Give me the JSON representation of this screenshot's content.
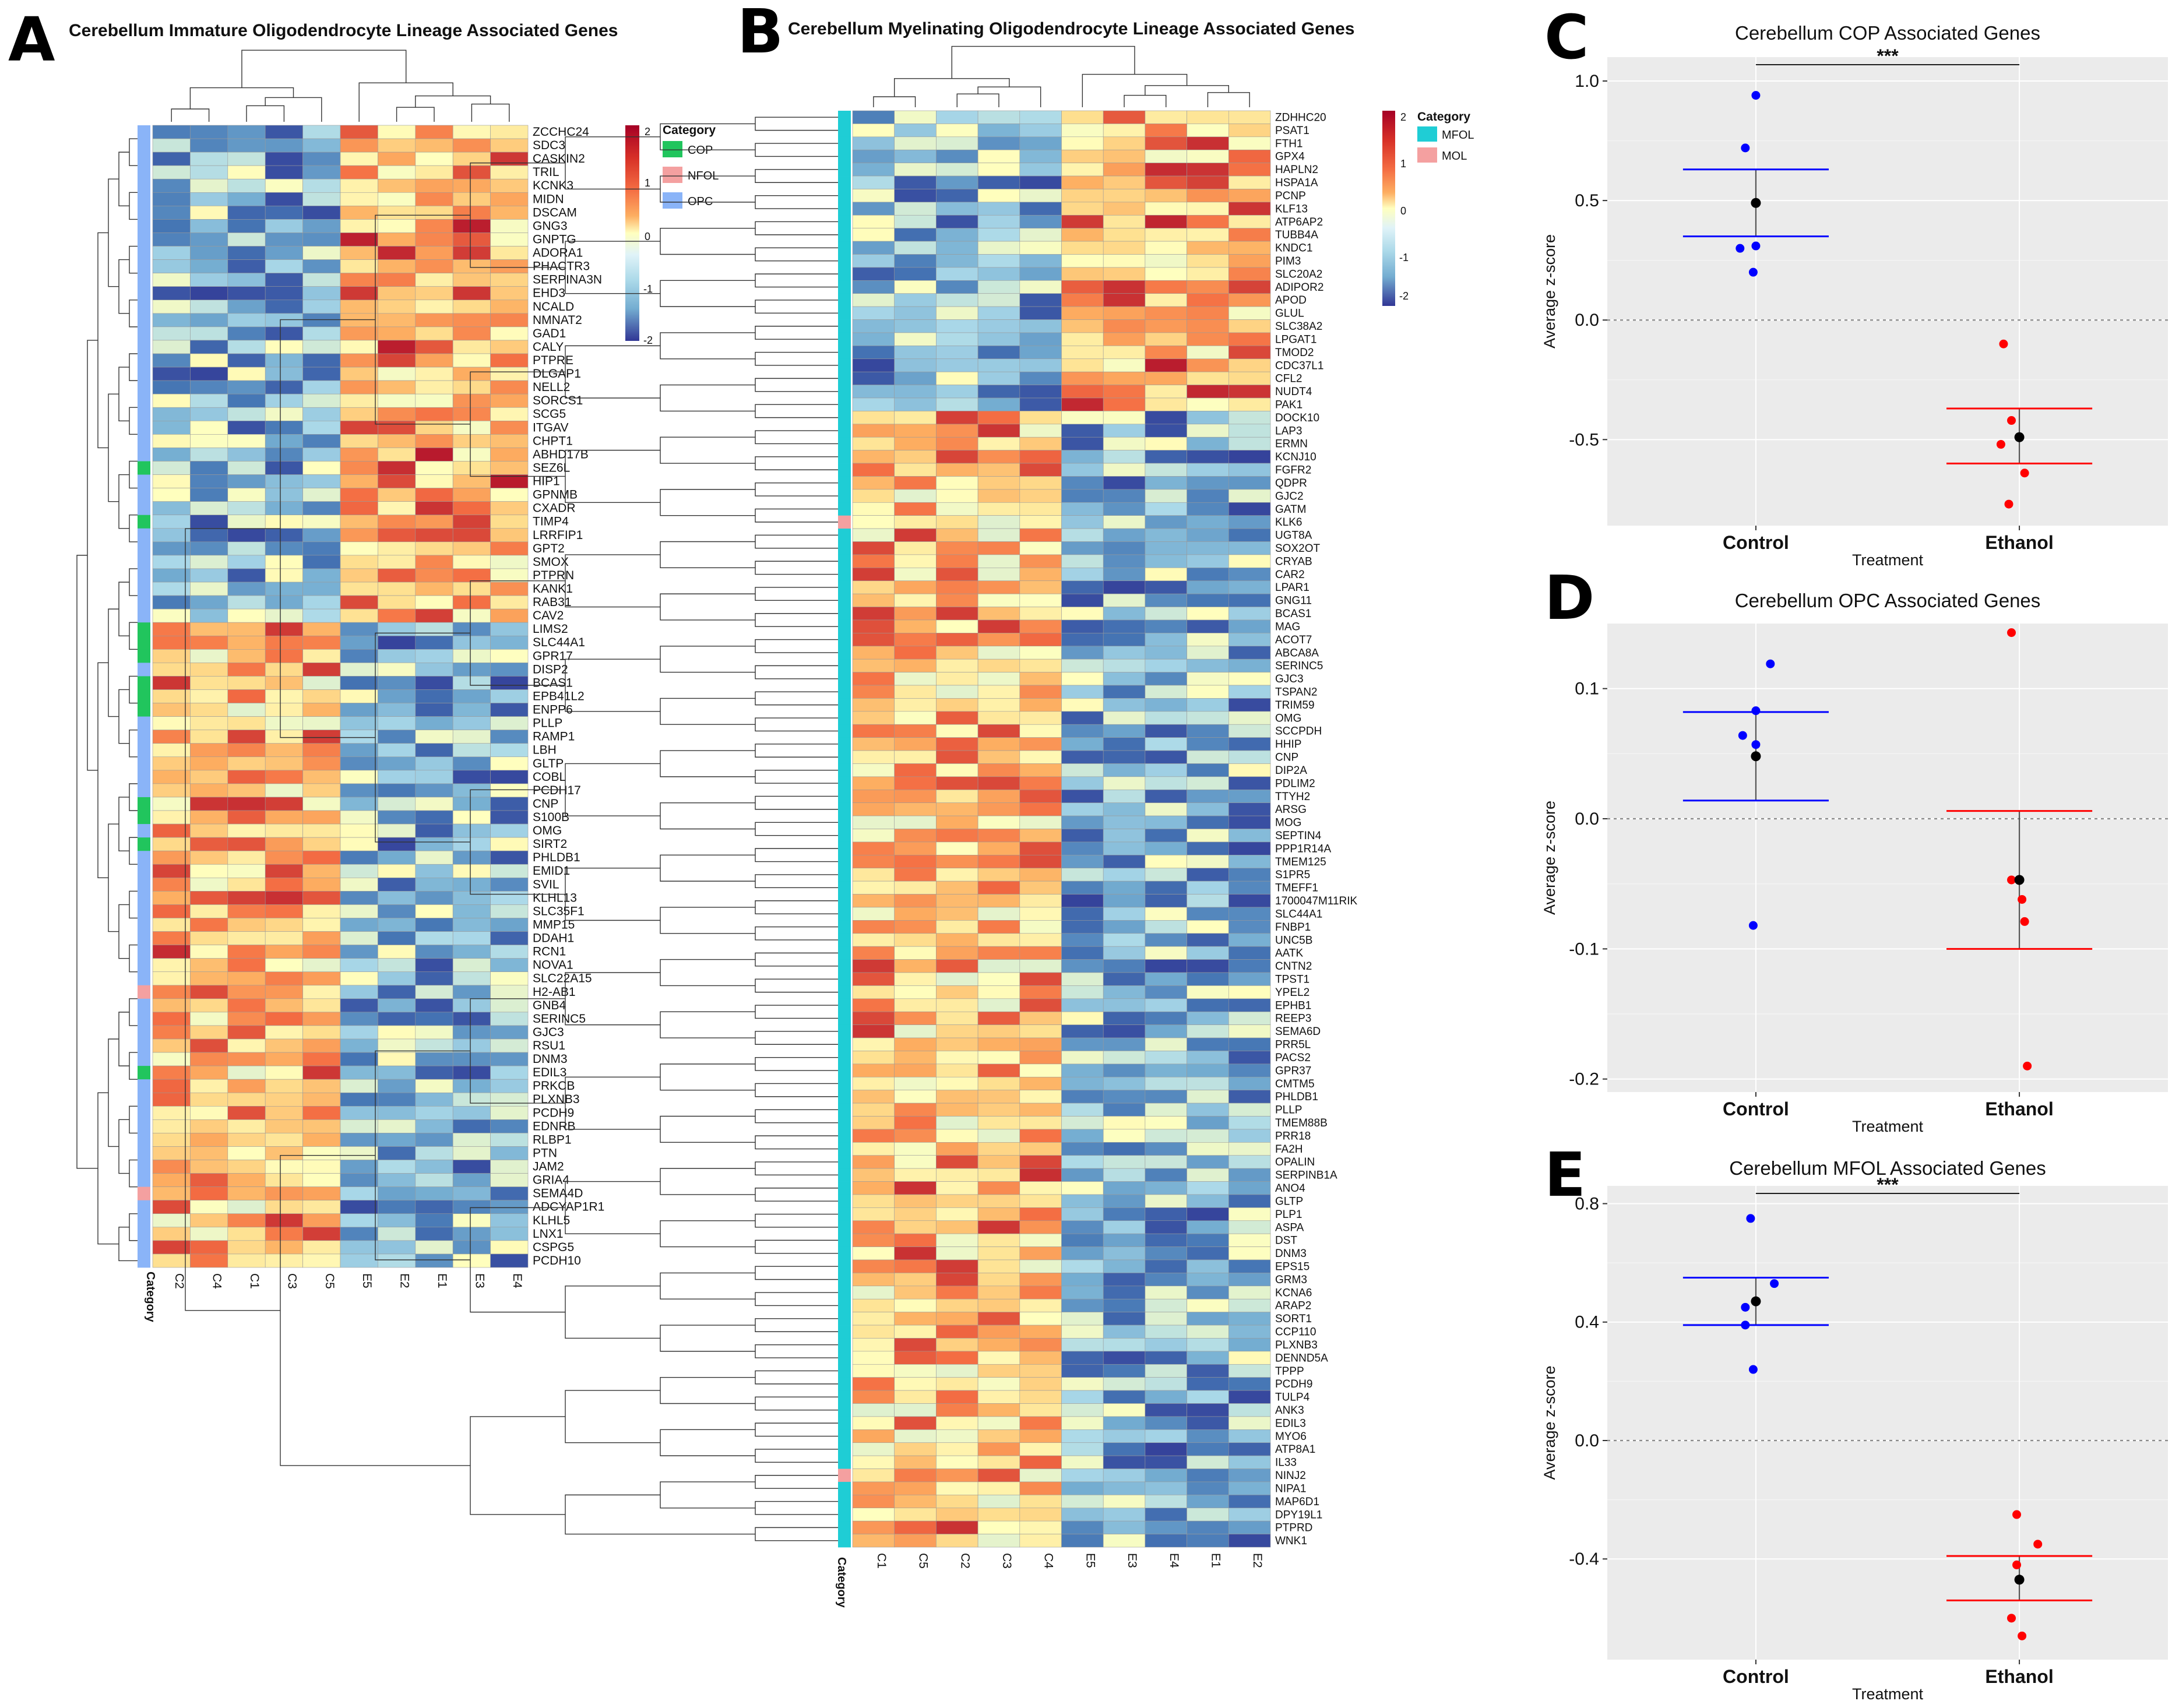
{
  "figure": {
    "panel_letters": [
      "A",
      "B",
      "C",
      "D",
      "E"
    ]
  },
  "colors": {
    "low": "#313695",
    "mid": "#FFFFBF",
    "high": "#A50026",
    "cat_COP": "#21C55D",
    "cat_NFOL": "#F4A0A0",
    "cat_OPC": "#8AB4F8",
    "cat_MFOL": "#1FCDD5",
    "cat_MOL": "#F4A0A0",
    "control": "#0000FF",
    "ethanol": "#FF0000",
    "mean": "#000000",
    "plot_bg": "#EBEBEB"
  },
  "chart_data": [
    {
      "type": "heatmap",
      "panel": "A",
      "title": "Cerebellum Immature Oligodendrocyte Lineage Associated Genes",
      "columns": [
        "C2",
        "C4",
        "C1",
        "C3",
        "C5",
        "E5",
        "E2",
        "E1",
        "E3",
        "E4"
      ],
      "annotation_label": "Category",
      "legend": {
        "title": "Category",
        "entries": [
          "COP",
          "NFOL",
          "OPC"
        ]
      },
      "scale": {
        "ticks": [
          "2",
          "1",
          "0",
          "-1",
          "-2"
        ],
        "range": [
          -2,
          2
        ]
      },
      "rows": [
        "ZCCHC24",
        "SDC3",
        "CASKIN2",
        "TRIL",
        "KCNK3",
        "MIDN",
        "DSCAM",
        "GNG3",
        "GNPTG",
        "ADORA1",
        "PHACTR3",
        "SERPINA3N",
        "EHD3",
        "NCALD",
        "NMNAT2",
        "GAD1",
        "CALY",
        "PTPRE",
        "DLGAP1",
        "NELL2",
        "SORCS1",
        "SCG5",
        "ITGAV",
        "CHPT1",
        "ABHD17B",
        "SEZ6L",
        "HIP1",
        "GPNMB",
        "CXADR",
        "TIMP4",
        "LRRFIP1",
        "GPT2",
        "SMOX",
        "PTPRN",
        "KANK1",
        "RAB31",
        "CAV2",
        "LIMS2",
        "SLC44A1",
        "GPR17",
        "DISP2",
        "BCAS1",
        "EPB41L2",
        "ENPP6",
        "PLLP",
        "RAMP1",
        "LBH",
        "GLTP",
        "COBL",
        "PCDH17",
        "CNP",
        "S100B",
        "OMG",
        "SIRT2",
        "PHLDB1",
        "EMID1",
        "SVIL",
        "KLHL13",
        "SLC35F1",
        "MMP15",
        "DDAH1",
        "RCN1",
        "NOVA1",
        "SLC22A15",
        "H2-AB1",
        "GNB4",
        "SERINC5",
        "GJC3",
        "RSU1",
        "DNM3",
        "EDIL3",
        "PRKCB",
        "PLXNB3",
        "PCDH9",
        "EDNRB",
        "RLBP1",
        "PTN",
        "JAM2",
        "GRIA4",
        "SEMA4D",
        "ADCYAP1R1",
        "KLHL5",
        "LNX1",
        "CSPG5",
        "PCDH10"
      ],
      "categories": [
        "OPC",
        "OPC",
        "OPC",
        "OPC",
        "OPC",
        "OPC",
        "OPC",
        "OPC",
        "OPC",
        "OPC",
        "OPC",
        "OPC",
        "OPC",
        "OPC",
        "OPC",
        "OPC",
        "OPC",
        "OPC",
        "OPC",
        "OPC",
        "OPC",
        "OPC",
        "OPC",
        "OPC",
        "OPC",
        "COP",
        "OPC",
        "OPC",
        "OPC",
        "COP",
        "OPC",
        "OPC",
        "OPC",
        "OPC",
        "OPC",
        "OPC",
        "OPC",
        "COP",
        "COP",
        "COP",
        "OPC",
        "COP",
        "COP",
        "COP",
        "OPC",
        "OPC",
        "OPC",
        "OPC",
        "OPC",
        "OPC",
        "COP",
        "COP",
        "OPC",
        "COP",
        "OPC",
        "OPC",
        "OPC",
        "OPC",
        "OPC",
        "OPC",
        "OPC",
        "OPC",
        "OPC",
        "OPC",
        "NFOL",
        "OPC",
        "OPC",
        "OPC",
        "OPC",
        "OPC",
        "COP",
        "OPC",
        "OPC",
        "OPC",
        "OPC",
        "OPC",
        "OPC",
        "OPC",
        "OPC",
        "NFOL",
        "OPC",
        "OPC",
        "OPC",
        "OPC",
        "OPC"
      ],
      "split_row": 37,
      "split_col": 5
    },
    {
      "type": "heatmap",
      "panel": "B",
      "title": "Cerebellum Myelinating Oligodendrocyte Lineage Associated Genes",
      "columns": [
        "C1",
        "C5",
        "C2",
        "C3",
        "C4",
        "E5",
        "E3",
        "E4",
        "E1",
        "E2"
      ],
      "annotation_label": "Category",
      "legend": {
        "title": "Category",
        "entries": [
          "MFOL",
          "MOL"
        ]
      },
      "scale": {
        "ticks": [
          "2",
          "1",
          "0",
          "-1",
          "-2"
        ],
        "range": [
          -2,
          2
        ]
      },
      "rows": [
        "ZDHHC20",
        "PSAT1",
        "FTH1",
        "GPX4",
        "HAPLN2",
        "HSPA1A",
        "PCNP",
        "KLF13",
        "ATP6AP2",
        "TUBB4A",
        "KNDC1",
        "PIM3",
        "SLC20A2",
        "ADIPOR2",
        "APOD",
        "GLUL",
        "SLC38A2",
        "LPGAT1",
        "TMOD2",
        "CDC37L1",
        "CFL2",
        "NUDT4",
        "PAK1",
        "DOCK10",
        "LAP3",
        "ERMN",
        "KCNJ10",
        "FGFR2",
        "QDPR",
        "GJC2",
        "GATM",
        "KLK6",
        "UGT8A",
        "SOX2OT",
        "CRYAB",
        "CAR2",
        "LPAR1",
        "GNG11",
        "BCAS1",
        "MAG",
        "ACOT7",
        "ABCA8A",
        "SERINC5",
        "GJC3",
        "TSPAN2",
        "TRIM59",
        "OMG",
        "SCCPDH",
        "HHIP",
        "CNP",
        "DIP2A",
        "PDLIM2",
        "TTYH2",
        "ARSG",
        "MOG",
        "SEPTIN4",
        "PPP1R14A",
        "TMEM125",
        "S1PR5",
        "TMEFF1",
        "1700047M11RIK",
        "SLC44A1",
        "FNBP1",
        "UNC5B",
        "AATK",
        "CNTN2",
        "TPST1",
        "YPEL2",
        "EPHB1",
        "REEP3",
        "SEMA6D",
        "PRR5L",
        "PACS2",
        "GPR37",
        "CMTM5",
        "PHLDB1",
        "PLLP",
        "TMEM88B",
        "PRR18",
        "FA2H",
        "OPALIN",
        "SERPINB1A",
        "ANO4",
        "GLTP",
        "PLP1",
        "ASPA",
        "DST",
        "DNM3",
        "EPS15",
        "GRM3",
        "KCNA6",
        "ARAP2",
        "SORT1",
        "CCP110",
        "PLXNB3",
        "DENND5A",
        "TPPP",
        "PCDH9",
        "TULP4",
        "ANK3",
        "EDIL3",
        "MYO6",
        "ATP8A1",
        "IL33",
        "NINJ2",
        "NIPA1",
        "MAP6D1",
        "DPY19L1",
        "PTPRD",
        "WNK1"
      ],
      "mol_rows": [
        31,
        104
      ],
      "split_row": 23,
      "split_col": 5
    },
    {
      "type": "scatter",
      "panel": "C",
      "title": "Cerebellum COP Associated Genes",
      "xlabel": "Treatment",
      "ylabel": "Average z-score",
      "categories": [
        "Control",
        "Ethanol"
      ],
      "ylim": [
        -0.86,
        1.1
      ],
      "yticks": [
        1.0,
        0.5,
        0.0,
        -0.5
      ],
      "ytick_labels": [
        "1.0",
        "0.5",
        "0.0",
        "-0.5"
      ],
      "series": [
        {
          "name": "Control",
          "values": [
            0.94,
            0.72,
            0.31,
            0.3,
            0.2
          ],
          "jitter": [
            0.0,
            -0.08,
            0.0,
            -0.12,
            -0.02
          ],
          "mean": 0.49,
          "err_low": 0.35,
          "err_high": 0.63
        },
        {
          "name": "Ethanol",
          "values": [
            -0.1,
            -0.42,
            -0.52,
            -0.64,
            -0.77
          ],
          "jitter": [
            -0.12,
            -0.06,
            -0.14,
            0.04,
            -0.08
          ],
          "mean": -0.49,
          "err_low": -0.6,
          "err_high": -0.37
        }
      ],
      "significance": "***"
    },
    {
      "type": "scatter",
      "panel": "D",
      "title": "Cerebellum OPC Associated Genes",
      "xlabel": "Treatment",
      "ylabel": "Average z-score",
      "categories": [
        "Control",
        "Ethanol"
      ],
      "ylim": [
        -0.21,
        0.15
      ],
      "yticks": [
        0.1,
        0.0,
        -0.1,
        -0.2
      ],
      "ytick_labels": [
        "0.1",
        "0.0",
        "-0.1",
        "-0.2"
      ],
      "series": [
        {
          "name": "Control",
          "values": [
            0.119,
            0.083,
            0.064,
            0.057,
            -0.082
          ],
          "jitter": [
            0.11,
            0.0,
            -0.1,
            0.0,
            -0.02
          ],
          "mean": 0.048,
          "err_low": 0.014,
          "err_high": 0.082
        },
        {
          "name": "Ethanol",
          "values": [
            0.143,
            -0.047,
            -0.062,
            -0.079,
            -0.19
          ],
          "jitter": [
            -0.06,
            -0.06,
            0.02,
            0.04,
            0.06
          ],
          "mean": -0.047,
          "err_low": -0.1,
          "err_high": 0.006
        }
      ],
      "significance": ""
    },
    {
      "type": "scatter",
      "panel": "E",
      "title": "Cerebellum MFOL Associated Genes",
      "xlabel": "Treatment",
      "ylabel": "Average z-score",
      "categories": [
        "Control",
        "Ethanol"
      ],
      "ylim": [
        -0.74,
        0.86
      ],
      "yticks": [
        0.8,
        0.4,
        0.0,
        -0.4
      ],
      "ytick_labels": [
        "0.8",
        "0.4",
        "0.0",
        "-0.4"
      ],
      "series": [
        {
          "name": "Control",
          "values": [
            0.75,
            0.53,
            0.45,
            0.39,
            0.24
          ],
          "jitter": [
            -0.04,
            0.14,
            -0.08,
            -0.08,
            -0.02
          ],
          "mean": 0.47,
          "err_low": 0.39,
          "err_high": 0.55
        },
        {
          "name": "Ethanol",
          "values": [
            -0.25,
            -0.35,
            -0.42,
            -0.6,
            -0.66
          ],
          "jitter": [
            -0.02,
            0.14,
            -0.02,
            -0.06,
            0.02
          ],
          "mean": -0.47,
          "err_low": -0.54,
          "err_high": -0.39
        }
      ],
      "significance": "***"
    }
  ]
}
